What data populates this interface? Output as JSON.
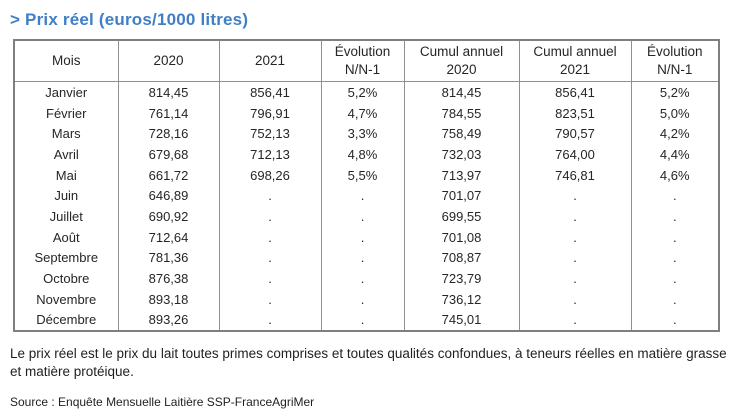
{
  "title": "> Prix réel (euros/1000 litres)",
  "colors": {
    "title_blue": "#3f7fc6",
    "table_border": "#7f7f7f",
    "text": "#262626"
  },
  "table": {
    "headers": [
      "Mois",
      "2020",
      "2021",
      "Évolution\nN/N-1",
      "Cumul annuel\n2020",
      "Cumul annuel\n2021",
      "Évolution\nN/N-1"
    ],
    "rows": [
      [
        "Janvier",
        "814,45",
        "856,41",
        "5,2%",
        "814,45",
        "856,41",
        "5,2%"
      ],
      [
        "Février",
        "761,14",
        "796,91",
        "4,7%",
        "784,55",
        "823,51",
        "5,0%"
      ],
      [
        "Mars",
        "728,16",
        "752,13",
        "3,3%",
        "758,49",
        "790,57",
        "4,2%"
      ],
      [
        "Avril",
        "679,68",
        "712,13",
        "4,8%",
        "732,03",
        "764,00",
        "4,4%"
      ],
      [
        "Mai",
        "661,72",
        "698,26",
        "5,5%",
        "713,97",
        "746,81",
        "4,6%"
      ],
      [
        "Juin",
        "646,89",
        ".",
        ".",
        "701,07",
        ".",
        "."
      ],
      [
        "Juillet",
        "690,92",
        ".",
        ".",
        "699,55",
        ".",
        "."
      ],
      [
        "Août",
        "712,64",
        ".",
        ".",
        "701,08",
        ".",
        "."
      ],
      [
        "Septembre",
        "781,36",
        ".",
        ".",
        "708,87",
        ".",
        "."
      ],
      [
        "Octobre",
        "876,38",
        ".",
        ".",
        "723,79",
        ".",
        "."
      ],
      [
        "Novembre",
        "893,18",
        ".",
        ".",
        "736,12",
        ".",
        "."
      ],
      [
        "Décembre",
        "893,26",
        ".",
        ".",
        "745,01",
        ".",
        "."
      ]
    ]
  },
  "footnote": "Le prix réel est le prix du lait toutes primes comprises et toutes qualités confondues, à teneurs réelles en matière grasse et matière protéique.",
  "source": "Source : Enquête Mensuelle Laitière SSP-FranceAgriMer"
}
